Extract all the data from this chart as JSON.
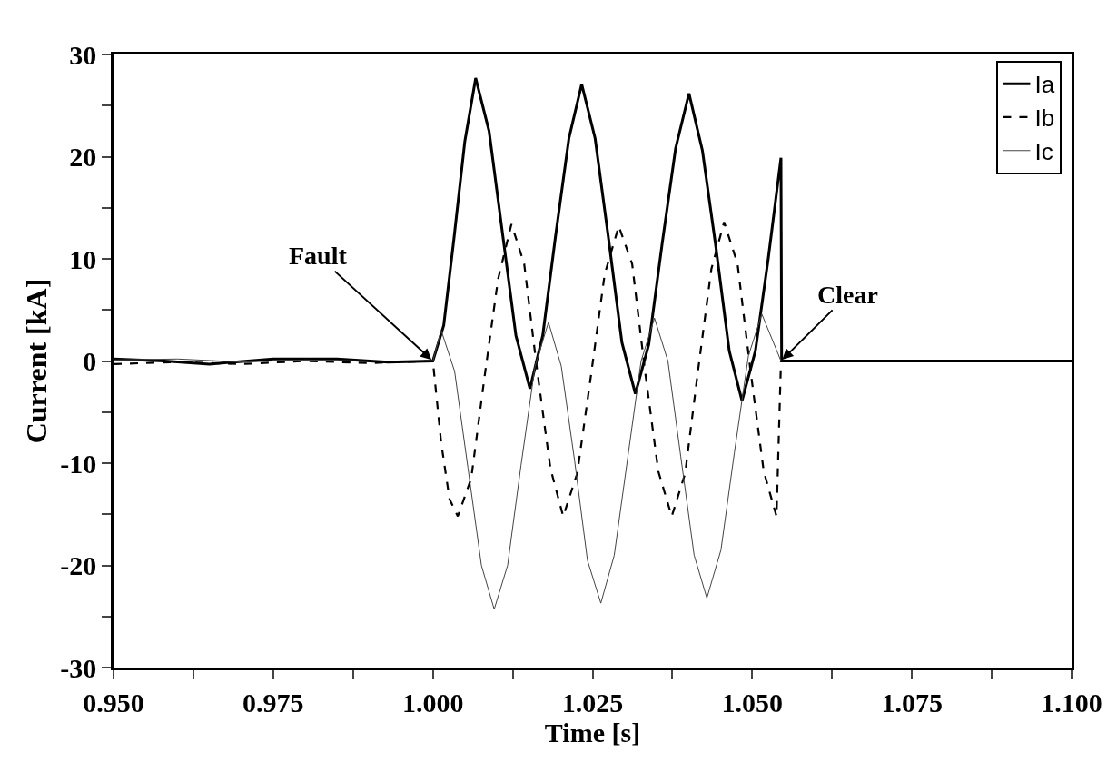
{
  "chart_data": {
    "type": "line",
    "xlabel": "Time [s]",
    "ylabel": "Current [kA]",
    "xlim": [
      0.95,
      1.1
    ],
    "xticks": [
      {
        "value": 0.95,
        "label": "0.950"
      },
      {
        "value": 0.9625,
        "label": null
      },
      {
        "value": 0.975,
        "label": "0.975"
      },
      {
        "value": 0.9875,
        "label": null
      },
      {
        "value": 1.0,
        "label": "1.000"
      },
      {
        "value": 1.0125,
        "label": null
      },
      {
        "value": 1.025,
        "label": "1.025"
      },
      {
        "value": 1.0375,
        "label": null
      },
      {
        "value": 1.05,
        "label": "1.050"
      },
      {
        "value": 1.0625,
        "label": null
      },
      {
        "value": 1.075,
        "label": "1.075"
      },
      {
        "value": 1.0875,
        "label": null
      },
      {
        "value": 1.1,
        "label": "1.100"
      }
    ],
    "ylim": [
      -30,
      30
    ],
    "yticks": [
      -30,
      {
        "value": -25,
        "label": null
      },
      -20,
      {
        "value": -15,
        "label": null
      },
      -10,
      {
        "value": -5,
        "label": null
      },
      0,
      {
        "value": 5,
        "label": null
      },
      10,
      {
        "value": 15,
        "label": null
      },
      20,
      {
        "value": 25,
        "label": null
      },
      30
    ],
    "grid": false,
    "legend": "top right",
    "marker": "none",
    "annotations": [
      {
        "text": "Fault",
        "x": 1.0,
        "y": 0
      },
      {
        "text": "Clear",
        "x": 1.0545,
        "y": 0
      }
    ],
    "series": [
      {
        "name": "Ia",
        "color": "#000000",
        "line_style": "solid",
        "x": [
          0.95,
          0.958,
          0.965,
          0.975,
          0.985,
          0.993,
          1.0,
          1.0017,
          1.0033,
          1.005,
          1.0067,
          1.0088,
          1.0109,
          1.013,
          1.0152,
          1.0172,
          1.0192,
          1.0213,
          1.0233,
          1.0254,
          1.0275,
          1.0296,
          1.0317,
          1.0338,
          1.0359,
          1.038,
          1.0401,
          1.0422,
          1.0443,
          1.0464,
          1.0484,
          1.0505,
          1.0525,
          1.0545,
          1.0546,
          1.1
        ],
        "values": [
          0.2,
          0,
          -0.3,
          0.2,
          0.2,
          -0.1,
          0,
          3.5,
          12,
          21.5,
          27.7,
          22.5,
          12.5,
          2.5,
          -2.7,
          2.5,
          12.2,
          21.8,
          27.1,
          21.8,
          12,
          1.8,
          -3.2,
          1.6,
          11.5,
          20.8,
          26.2,
          20.6,
          11.2,
          1,
          -3.9,
          1,
          10,
          19.9,
          0,
          0
        ]
      },
      {
        "name": "Ib",
        "color": "#000000",
        "line_style": "dashed",
        "x": [
          0.95,
          0.96,
          0.97,
          0.98,
          0.99,
          1.0,
          1.0013,
          1.0026,
          1.0039,
          1.006,
          1.0081,
          1.0102,
          1.0123,
          1.0143,
          1.0163,
          1.0184,
          1.0204,
          1.0226,
          1.0248,
          1.0269,
          1.0291,
          1.0312,
          1.0332,
          1.0353,
          1.0374,
          1.0395,
          1.0415,
          1.0436,
          1.0456,
          1.0477,
          1.0497,
          1.0518,
          1.0538,
          1.0545
        ],
        "values": [
          -0.3,
          -0.1,
          -0.3,
          0,
          -0.2,
          0,
          -8,
          -13.5,
          -15.2,
          -11.5,
          -1.5,
          8,
          13.4,
          9.5,
          -0.8,
          -10.5,
          -15.2,
          -11,
          -1.2,
          8.5,
          13.2,
          9.5,
          -0.9,
          -10.8,
          -15.2,
          -11,
          -1,
          9,
          13.6,
          9.5,
          -0.8,
          -10.8,
          -15.2,
          0
        ]
      },
      {
        "name": "Ic",
        "color": "#444444",
        "line_style": "solid",
        "x": [
          0.95,
          0.96,
          0.97,
          0.98,
          0.99,
          1.0,
          1.0013,
          1.0034,
          1.0055,
          1.0076,
          1.0096,
          1.0117,
          1.0138,
          1.016,
          1.0181,
          1.0201,
          1.0222,
          1.0242,
          1.0263,
          1.0284,
          1.0305,
          1.0326,
          1.0347,
          1.0368,
          1.0388,
          1.0409,
          1.0429,
          1.0451,
          1.0472,
          1.0494,
          1.0515,
          1.0545
        ],
        "values": [
          0.1,
          0.2,
          -0.1,
          0.1,
          0,
          0,
          3,
          -1,
          -10.5,
          -20,
          -24.3,
          -20,
          -10.2,
          -0.5,
          3.8,
          -0.5,
          -9.8,
          -19.5,
          -23.7,
          -19,
          -9.5,
          0,
          4.2,
          0,
          -9.3,
          -19,
          -23.2,
          -18.5,
          -9,
          0.5,
          4.6,
          0
        ]
      }
    ]
  }
}
